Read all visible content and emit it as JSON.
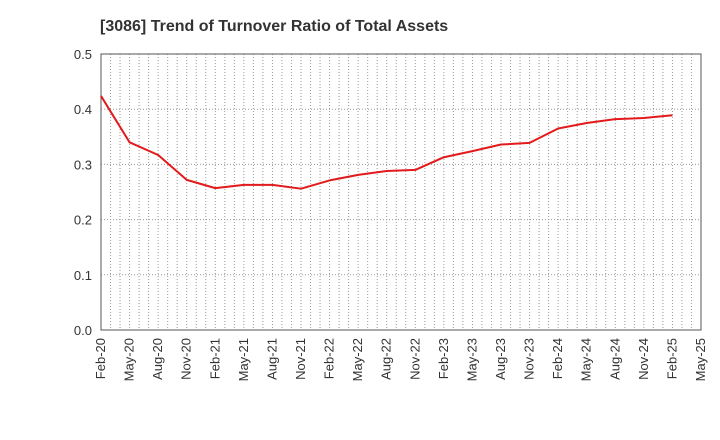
{
  "chart_data": {
    "type": "line",
    "title": "[3086]  Trend of Turnover Ratio of Total Assets",
    "xlabel": "",
    "ylabel": "",
    "x": [
      "Feb-20",
      "May-20",
      "Aug-20",
      "Nov-20",
      "Feb-21",
      "May-21",
      "Aug-21",
      "Nov-21",
      "Feb-22",
      "May-22",
      "Aug-22",
      "Nov-22",
      "Feb-23",
      "May-23",
      "Aug-23",
      "Nov-23",
      "Feb-24",
      "May-24",
      "Aug-24",
      "Nov-24",
      "Feb-25"
    ],
    "x_ticks": [
      "Feb-20",
      "May-20",
      "Aug-20",
      "Nov-20",
      "Feb-21",
      "May-21",
      "Aug-21",
      "Nov-21",
      "Feb-22",
      "May-22",
      "Aug-22",
      "Nov-22",
      "Feb-23",
      "May-23",
      "Aug-23",
      "Nov-23",
      "Feb-24",
      "May-24",
      "Aug-24",
      "Nov-24",
      "Feb-25",
      "May-25"
    ],
    "y_ticks": [
      "0.0",
      "0.1",
      "0.2",
      "0.3",
      "0.4",
      "0.5"
    ],
    "ylim": [
      0,
      0.5
    ],
    "series": [
      {
        "name": "",
        "color": "#e31a1c",
        "values": [
          0.424,
          0.34,
          0.317,
          0.272,
          0.257,
          0.263,
          0.263,
          0.256,
          0.271,
          0.281,
          0.288,
          0.29,
          0.313,
          0.324,
          0.336,
          0.339,
          0.365,
          0.375,
          0.382,
          0.384,
          0.389
        ]
      }
    ],
    "grid": true,
    "grid_style": "dotted",
    "legend": "none"
  }
}
